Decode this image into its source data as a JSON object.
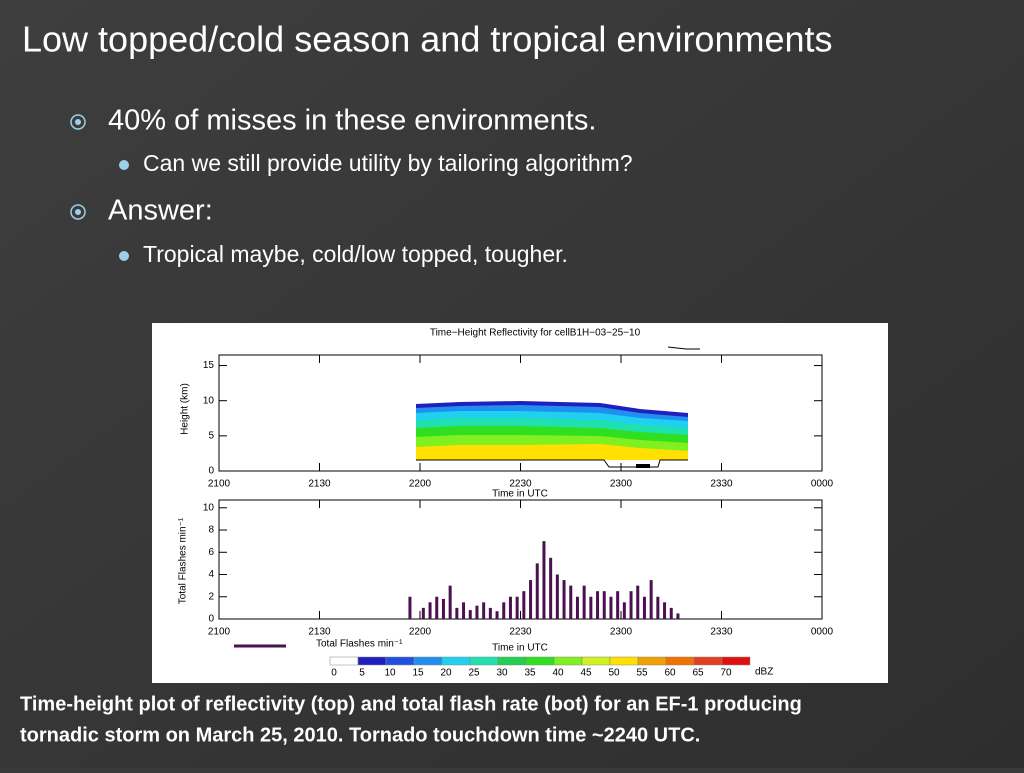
{
  "title": "Low topped/cold season and tropical environments",
  "bullets": [
    {
      "text": "40% of misses in these environments.",
      "sub": [
        "Can we still provide utility by tailoring algorithm?"
      ]
    },
    {
      "text": "Answer:",
      "sub": [
        "Tropical maybe, cold/low topped, tougher."
      ]
    }
  ],
  "figure": {
    "reflectivity": {
      "title": "Time−Height Reflectivity for cellB1H−03−25−10",
      "ylabel": "Height (km)",
      "xlabel": "Time in UTC",
      "ylim": [
        0,
        16.5
      ],
      "yticks": [
        0,
        5,
        10,
        15
      ],
      "xlim": [
        0,
        180
      ],
      "xticks": [
        {
          "value": 0,
          "label": "2100"
        },
        {
          "value": 30,
          "label": "2130"
        },
        {
          "value": 60,
          "label": "2200"
        },
        {
          "value": 90,
          "label": "2230"
        },
        {
          "value": 120,
          "label": "2300"
        },
        {
          "value": 150,
          "label": "2330"
        },
        {
          "value": 180,
          "label": "0000"
        }
      ]
    },
    "flash": {
      "type": "bar",
      "ylabel": "Total Flashes min⁻¹",
      "xlabel": "Time in UTC",
      "legend": "Total Flashes min⁻¹",
      "color": "#4a1050",
      "ylim": [
        0,
        10.7
      ],
      "yticks": [
        0,
        2,
        4,
        6,
        8,
        10
      ],
      "xlim": [
        0,
        180
      ],
      "xticks": [
        {
          "value": 0,
          "label": "2100"
        },
        {
          "value": 30,
          "label": "2130"
        },
        {
          "value": 60,
          "label": "2200"
        },
        {
          "value": 90,
          "label": "2230"
        },
        {
          "value": 120,
          "label": "2300"
        },
        {
          "value": 150,
          "label": "2330"
        },
        {
          "value": 180,
          "label": "0000"
        }
      ],
      "x": [
        57,
        61,
        63,
        65,
        67,
        69,
        71,
        73,
        75,
        77,
        79,
        81,
        83,
        85,
        87,
        89,
        91,
        93,
        95,
        97,
        99,
        101,
        103,
        105,
        107,
        109,
        111,
        113,
        115,
        117,
        119,
        121,
        123,
        125,
        127,
        129,
        131,
        133,
        135,
        137
      ],
      "values": [
        2,
        1,
        1.5,
        2,
        1.8,
        3,
        1,
        1.5,
        0.8,
        1.2,
        1.5,
        1,
        0.7,
        1.5,
        2,
        2,
        2.5,
        3.5,
        5,
        7,
        5.5,
        4,
        3.5,
        3,
        2,
        3,
        2,
        2.5,
        2.5,
        2,
        2.5,
        1.5,
        2.5,
        3,
        2,
        3.5,
        2,
        1.5,
        1,
        0.5
      ]
    },
    "colorbar": {
      "labels": [
        "0",
        "5",
        "10",
        "15",
        "20",
        "25",
        "30",
        "35",
        "40",
        "45",
        "50",
        "55",
        "60",
        "65",
        "70"
      ],
      "unit": "dBZ",
      "colors": [
        "#ffffff",
        "#2020c0",
        "#2050e0",
        "#2090f0",
        "#20d0f0",
        "#20e0b0",
        "#20d050",
        "#30e020",
        "#80f020",
        "#d0f020",
        "#ffe000",
        "#f0a000",
        "#f07000",
        "#e04020",
        "#e01010"
      ]
    }
  },
  "caption": [
    "Time-height plot of reflectivity (top) and total flash rate (bot) for an EF-1 producing",
    "tornadic storm on March 25, 2010.  Tornado touchdown time ~2240 UTC."
  ]
}
